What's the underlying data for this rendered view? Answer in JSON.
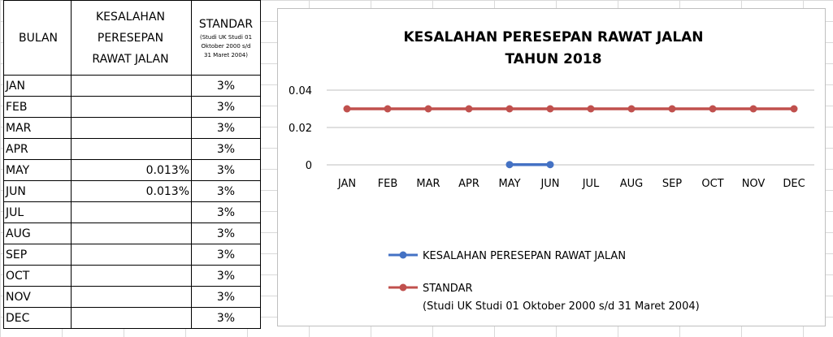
{
  "table": {
    "headers": {
      "bulan": "BULAN",
      "kesalahan": [
        "KESALAHAN",
        "PERESEPAN",
        "RAWAT JALAN"
      ],
      "standar_main": "STANDAR",
      "standar_sub": [
        "(Studi UK Studi 01",
        "Oktober 2000 s/d",
        "31 Maret 2004)"
      ]
    },
    "rows": [
      {
        "bulan": "JAN",
        "kesalahan": "",
        "standar": "3%"
      },
      {
        "bulan": "FEB",
        "kesalahan": "",
        "standar": "3%"
      },
      {
        "bulan": "MAR",
        "kesalahan": "",
        "standar": "3%"
      },
      {
        "bulan": "APR",
        "kesalahan": "",
        "standar": "3%"
      },
      {
        "bulan": "MAY",
        "kesalahan": "0.013%",
        "standar": "3%"
      },
      {
        "bulan": "JUN",
        "kesalahan": "0.013%",
        "standar": "3%"
      },
      {
        "bulan": "JUL",
        "kesalahan": "",
        "standar": "3%"
      },
      {
        "bulan": "AUG",
        "kesalahan": "",
        "standar": "3%"
      },
      {
        "bulan": "SEP",
        "kesalahan": "",
        "standar": "3%"
      },
      {
        "bulan": "OCT",
        "kesalahan": "",
        "standar": "3%"
      },
      {
        "bulan": "NOV",
        "kesalahan": "",
        "standar": "3%"
      },
      {
        "bulan": "DEC",
        "kesalahan": "",
        "standar": "3%"
      }
    ]
  },
  "chart_data": {
    "type": "line",
    "title": [
      "KESALAHAN PERESEPAN RAWAT JALAN",
      "TAHUN 2018"
    ],
    "categories": [
      "JAN",
      "FEB",
      "MAR",
      "APR",
      "MAY",
      "JUN",
      "JUL",
      "AUG",
      "SEP",
      "OCT",
      "NOV",
      "DEC"
    ],
    "y_ticks": [
      "0",
      "0.02",
      "0.04"
    ],
    "ylim": [
      0,
      0.04
    ],
    "grid": true,
    "legend_position": "bottom",
    "series": [
      {
        "name": "KESALAHAN PERESEPAN RAWAT JALAN",
        "color": "#4472c4",
        "values": [
          null,
          null,
          null,
          null,
          0.00013,
          0.00013,
          null,
          null,
          null,
          null,
          null,
          null
        ]
      },
      {
        "name": "STANDAR",
        "name_line2": "(Studi UK Studi 01 Oktober 2000 s/d 31 Maret 2004)",
        "color": "#c0504d",
        "values": [
          0.03,
          0.03,
          0.03,
          0.03,
          0.03,
          0.03,
          0.03,
          0.03,
          0.03,
          0.03,
          0.03,
          0.03
        ]
      }
    ]
  }
}
